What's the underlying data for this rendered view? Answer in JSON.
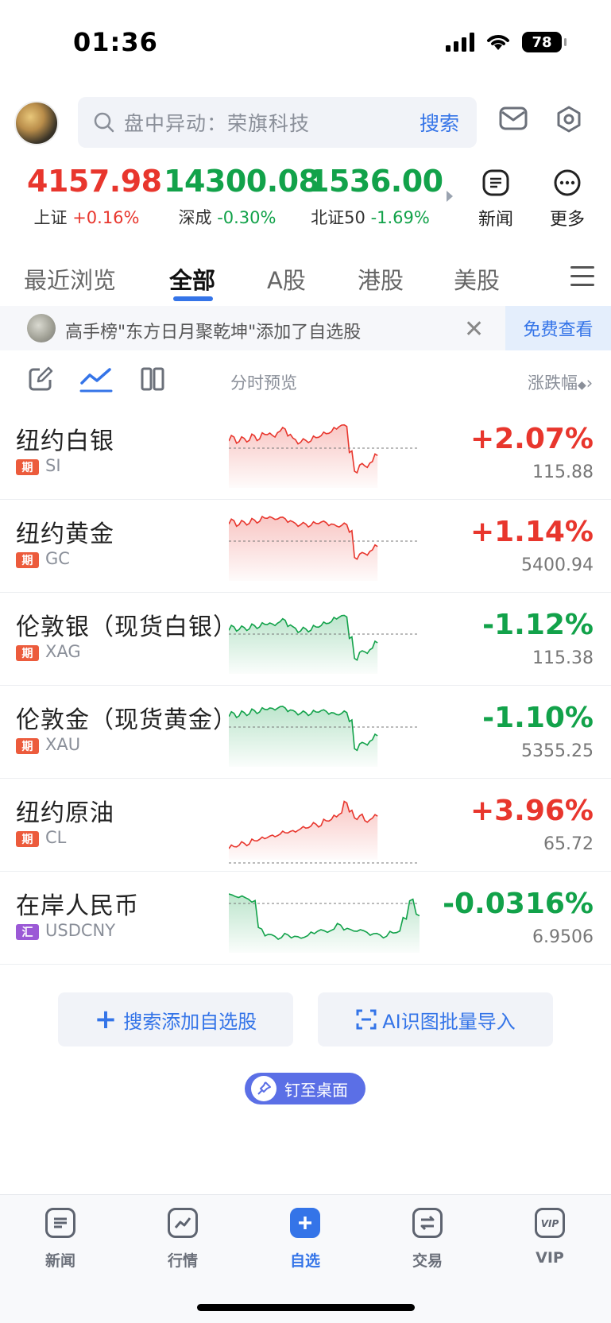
{
  "status_bar": {
    "time": "01:36",
    "battery": "78"
  },
  "search": {
    "placeholder": "盘中异动：荣旗科技",
    "button": "搜索"
  },
  "indices": [
    {
      "value": "4157.98",
      "name": "上证",
      "change": "+0.16%",
      "trend": "up"
    },
    {
      "value": "14300.08",
      "name": "深成",
      "change": "-0.30%",
      "trend": "down"
    },
    {
      "value": "1536.00",
      "name": "北证50",
      "change": "-1.69%",
      "trend": "down"
    }
  ],
  "top_buttons": {
    "news": "新闻",
    "more": "更多"
  },
  "tabs": [
    "最近浏览",
    "全部",
    "A股",
    "港股",
    "美股"
  ],
  "active_tab": "全部",
  "notice": {
    "text": "高手榜\"东方日月聚乾坤\"添加了自选股",
    "button": "免费查看"
  },
  "columns": {
    "preview": "分时预览",
    "sort": "涨跌幅"
  },
  "rows": [
    {
      "name": "纽约白银",
      "badge": "期",
      "code": "SI",
      "change": "+2.07%",
      "price": "115.88",
      "trend": "up",
      "spark": [
        3.0,
        2.4,
        3.1,
        2.6,
        2.9,
        2.2,
        2.7,
        2.0,
        1.8,
        2.4,
        1.5,
        1.2,
        2.0,
        2.8,
        3.2,
        2.9,
        3.0,
        2.5,
        2.2,
        1.9,
        1.6,
        1.2,
        0.6,
        0.8,
        4.5,
        7.8,
        6.4,
        7.0,
        6.1,
        5.2
      ]
    },
    {
      "name": "纽约黄金",
      "badge": "期",
      "code": "GC",
      "change": "+1.14%",
      "price": "5400.94",
      "trend": "up",
      "spark": [
        1.5,
        1.0,
        1.6,
        1.2,
        1.4,
        0.9,
        1.1,
        0.6,
        0.4,
        0.8,
        0.5,
        0.7,
        1.0,
        1.4,
        1.6,
        1.5,
        1.7,
        1.4,
        1.2,
        1.3,
        1.5,
        1.8,
        1.7,
        1.6,
        2.5,
        6.8,
        5.8,
        6.2,
        5.4,
        4.9
      ]
    },
    {
      "name": "伦敦银（现货白银）",
      "badge": "期",
      "code": "XAG",
      "change": "-1.12%",
      "price": "115.38",
      "trend": "down",
      "spark": [
        3.5,
        3.0,
        3.4,
        3.1,
        3.3,
        2.8,
        3.0,
        2.6,
        2.4,
        2.8,
        2.2,
        2.0,
        2.7,
        3.2,
        3.6,
        3.3,
        3.5,
        3.0,
        2.8,
        2.5,
        2.2,
        1.8,
        1.3,
        1.5,
        4.5,
        8.0,
        6.6,
        7.0,
        6.2,
        5.4
      ]
    },
    {
      "name": "伦敦金（现货黄金）",
      "badge": "期",
      "code": "XAU",
      "change": "-1.10%",
      "price": "5355.25",
      "trend": "down",
      "spark": [
        2.5,
        2.0,
        2.4,
        1.9,
        2.1,
        1.6,
        1.8,
        1.4,
        1.2,
        1.5,
        1.0,
        1.2,
        1.5,
        1.8,
        2.0,
        1.9,
        2.1,
        1.8,
        1.6,
        1.7,
        1.9,
        2.2,
        2.0,
        1.9,
        3.0,
        7.6,
        6.4,
        6.8,
        6.0,
        5.4
      ]
    },
    {
      "name": "纽约原油",
      "badge": "期",
      "code": "CL",
      "change": "+3.96%",
      "price": "65.72",
      "trend": "up",
      "spark": [
        8.4,
        8.1,
        7.9,
        7.6,
        7.7,
        7.2,
        7.0,
        6.9,
        6.5,
        6.6,
        6.2,
        6.0,
        5.8,
        5.9,
        5.4,
        5.3,
        5.0,
        4.7,
        4.9,
        4.2,
        4.0,
        3.6,
        3.0,
        1.5,
        2.6,
        4.0,
        3.2,
        4.4,
        3.8,
        3.5
      ]
    },
    {
      "name": "在岸人民币",
      "badge": "汇",
      "code": "USDCNY",
      "change": "-0.0316%",
      "price": "6.9506",
      "trend": "down",
      "spark": [
        1.2,
        1.6,
        1.5,
        2.0,
        2.2,
        6.5,
        7.3,
        7.6,
        7.8,
        7.4,
        7.6,
        7.9,
        7.5,
        7.2,
        6.6,
        7.0,
        6.5,
        5.9,
        6.4,
        6.8,
        6.6,
        7.0,
        7.2,
        7.4,
        7.6,
        7.1,
        6.8,
        5.0,
        2.0,
        4.5
      ]
    }
  ],
  "actions": {
    "search_add": "搜索添加自选股",
    "ai_import": "AI识图批量导入"
  },
  "pin": "钉至桌面",
  "tabbar": [
    "新闻",
    "行情",
    "自选",
    "交易",
    "VIP"
  ],
  "tabbar_active": "自选",
  "colors": {
    "up": "#e8362d",
    "down": "#12a24a",
    "accent": "#3474e8"
  }
}
